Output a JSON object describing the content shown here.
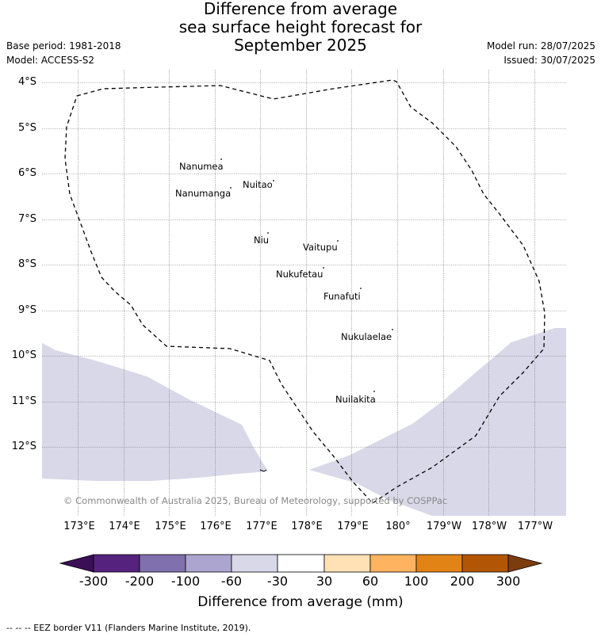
{
  "title": {
    "line1": "Difference from average",
    "line2": "sea surface height forecast for",
    "line3": "September 2025"
  },
  "meta": {
    "base_period": "Base period: 1981-2018",
    "model": "Model: ACCESS-S2",
    "model_run": "Model run: 28/07/2025",
    "issued": "Issued: 30/07/2025"
  },
  "map": {
    "lat_labels": [
      "4°S",
      "5°S",
      "6°S",
      "7°S",
      "8°S",
      "9°S",
      "10°S",
      "11°S",
      "12°S"
    ],
    "lon_labels": [
      "173°E",
      "174°E",
      "175°E",
      "176°E",
      "177°E",
      "178°E",
      "179°E",
      "180°",
      "179°W",
      "178°W",
      "177°W"
    ],
    "islands": [
      "Nanumea",
      "Nuitao",
      "Nanumanga",
      "Niu",
      "Vaitupu",
      "Nukufetau",
      "Funafuti",
      "Nukulaelae",
      "Nuilakita"
    ],
    "copyright": "© Commonwealth of Australia 2025, Bureau of Meteorology, supported by COSPPac",
    "shading_color": "#d8d8e8",
    "eez_line_style": "dashed"
  },
  "colorbar": {
    "ticks": [
      "-300",
      "-200",
      "-100",
      "-60",
      "-30",
      "30",
      "60",
      "100",
      "200",
      "300"
    ],
    "colors": [
      "#3b0f56",
      "#55227e",
      "#8070ae",
      "#aca5d0",
      "#d8d8e8",
      "#ffffff",
      "#ffe1b5",
      "#fdb35f",
      "#e28316",
      "#b25605",
      "#7c3d0d"
    ],
    "label": "Difference from average (mm)"
  },
  "footnote": "--  --  -- EEZ border V11 (Flanders Marine Institute, 2019)."
}
